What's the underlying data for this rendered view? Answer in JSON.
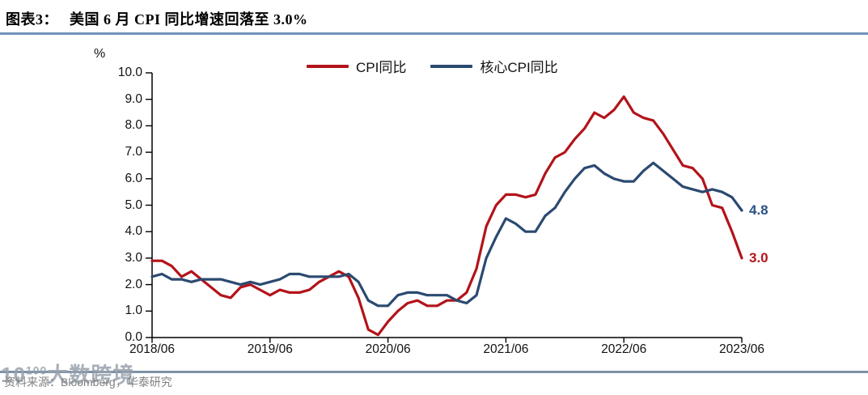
{
  "header": {
    "figure_label": "图表3：",
    "title": "美国 6 月 CPI 同比增速回落至 3.0%"
  },
  "chart_data": {
    "type": "line",
    "title": "美国 6 月 CPI 同比增速回落至 3.0%",
    "unit_label": "%",
    "grid": false,
    "legend_position": "top-center",
    "ylim": [
      0.0,
      10.0
    ],
    "ytick_labels": [
      "10.0",
      "9.0",
      "8.0",
      "7.0",
      "6.0",
      "5.0",
      "4.0",
      "3.0",
      "2.0",
      "1.0",
      "0.0"
    ],
    "x_tick_labels": [
      "2018/06",
      "2019/06",
      "2020/06",
      "2021/06",
      "2022/06",
      "2023/06"
    ],
    "x_tick_indices": [
      0,
      12,
      24,
      36,
      48,
      60
    ],
    "x_range_note": "monthly points from 2018/06 through 2023/06",
    "series": [
      {
        "name": "CPI同比",
        "color": "#b3131a",
        "end_label": "3.0",
        "end_label_color": "#b3131a",
        "values": [
          2.9,
          2.9,
          2.7,
          2.3,
          2.5,
          2.2,
          1.9,
          1.6,
          1.5,
          1.9,
          2.0,
          1.8,
          1.6,
          1.8,
          1.7,
          1.7,
          1.8,
          2.1,
          2.3,
          2.5,
          2.3,
          1.5,
          0.3,
          0.1,
          0.6,
          1.0,
          1.3,
          1.4,
          1.2,
          1.2,
          1.4,
          1.4,
          1.7,
          2.6,
          4.2,
          5.0,
          5.4,
          5.4,
          5.3,
          5.4,
          6.2,
          6.8,
          7.0,
          7.5,
          7.9,
          8.5,
          8.3,
          8.6,
          9.1,
          8.5,
          8.3,
          8.2,
          7.7,
          7.1,
          6.5,
          6.4,
          6.0,
          5.0,
          4.9,
          4.0,
          3.0
        ]
      },
      {
        "name": "核心CPI同比",
        "color": "#2b4a70",
        "end_label": "4.8",
        "end_label_color": "#2a5285",
        "values": [
          2.3,
          2.4,
          2.2,
          2.2,
          2.1,
          2.2,
          2.2,
          2.2,
          2.1,
          2.0,
          2.1,
          2.0,
          2.1,
          2.2,
          2.4,
          2.4,
          2.3,
          2.3,
          2.3,
          2.3,
          2.4,
          2.1,
          1.4,
          1.2,
          1.2,
          1.6,
          1.7,
          1.7,
          1.6,
          1.6,
          1.6,
          1.4,
          1.3,
          1.6,
          3.0,
          3.8,
          4.5,
          4.3,
          4.0,
          4.0,
          4.6,
          4.9,
          5.5,
          6.0,
          6.4,
          6.5,
          6.2,
          6.0,
          5.9,
          5.9,
          6.3,
          6.6,
          6.3,
          6.0,
          5.7,
          5.6,
          5.5,
          5.6,
          5.5,
          5.3,
          4.8
        ]
      }
    ]
  },
  "footer": {
    "source": "资料来源：Bloomberg，华泰研究",
    "watermark_prefix": "10",
    "watermark_sup": "100",
    "watermark_text": "大数跨境"
  }
}
